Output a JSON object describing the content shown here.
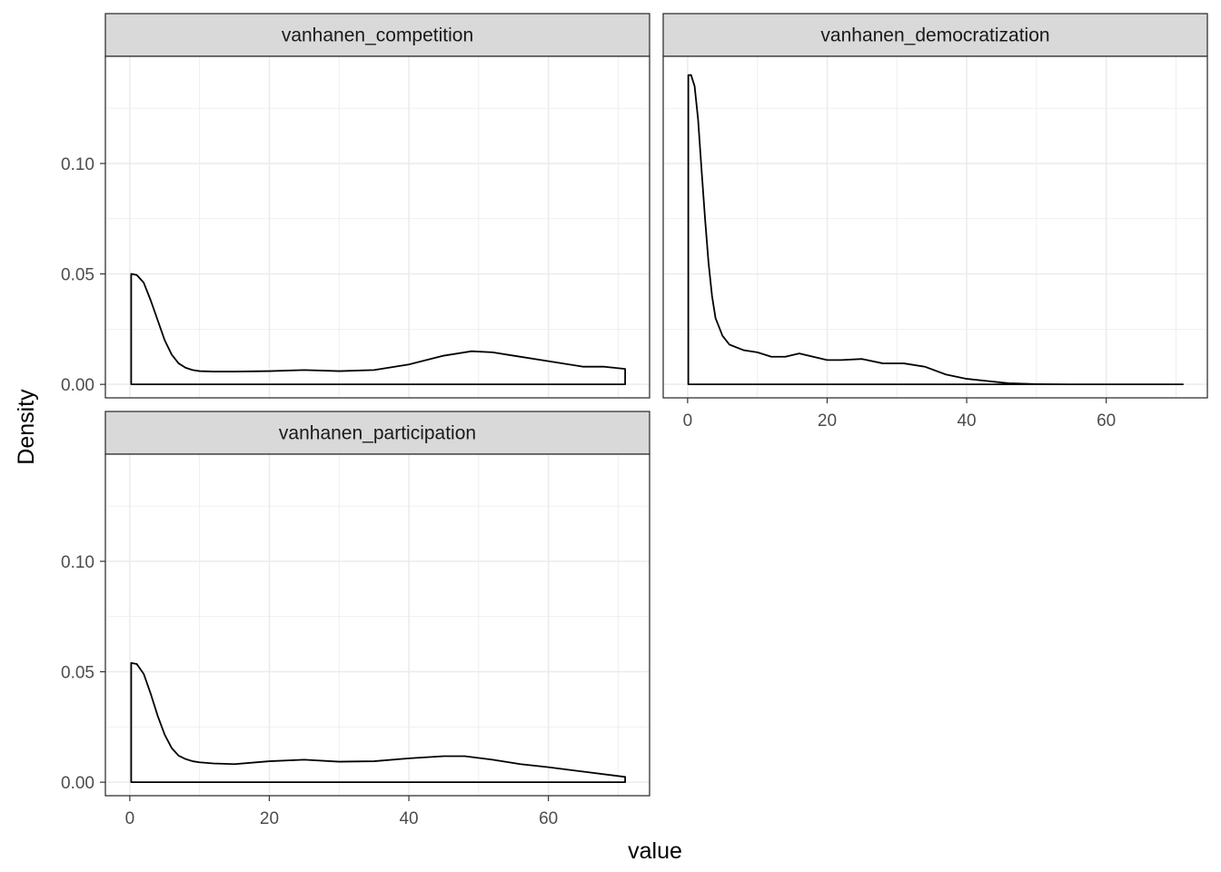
{
  "chart_data": {
    "type": "area",
    "kind": "faceted density plot",
    "xlabel": "value",
    "ylabel": "Density",
    "xlim": [
      -3.5,
      74.5
    ],
    "ylim": [
      -0.0061,
      0.1485
    ],
    "x_ticks": [
      0,
      20,
      40,
      60
    ],
    "x_tick_labels": [
      "0",
      "20",
      "40",
      "60"
    ],
    "y_ticks": [
      0.0,
      0.05,
      0.1
    ],
    "y_tick_labels": [
      "0.00",
      "0.05",
      "0.10"
    ],
    "grid": true,
    "theme": "bw",
    "line_color": "#000000",
    "strip_fill": "#d9d9d9",
    "panel_border": "#333333",
    "grid_color": "#ebebeb",
    "facets": [
      {
        "label": "vanhanen_competition",
        "series": {
          "x": [
            0.2,
            1,
            2,
            3,
            4,
            5,
            6,
            7,
            8,
            9,
            10,
            12,
            15,
            20,
            25,
            30,
            35,
            40,
            45,
            49,
            52,
            55,
            60,
            65,
            68,
            71
          ],
          "y": [
            0.05,
            0.0495,
            0.046,
            0.038,
            0.029,
            0.02,
            0.0135,
            0.0095,
            0.0075,
            0.0065,
            0.006,
            0.0058,
            0.0058,
            0.006,
            0.0065,
            0.006,
            0.0065,
            0.009,
            0.013,
            0.015,
            0.0145,
            0.013,
            0.0105,
            0.008,
            0.008,
            0.007
          ]
        }
      },
      {
        "label": "vanhanen_democratization",
        "series": {
          "x": [
            0.1,
            0.5,
            1,
            1.5,
            2,
            2.5,
            3,
            3.5,
            4,
            5,
            6,
            8,
            10,
            12,
            14,
            16,
            18,
            20,
            22,
            25,
            28,
            31,
            34,
            37,
            40,
            43,
            46,
            50,
            55,
            60,
            65,
            71
          ],
          "y": [
            0.14,
            0.14,
            0.135,
            0.12,
            0.097,
            0.075,
            0.055,
            0.04,
            0.03,
            0.022,
            0.018,
            0.0155,
            0.0145,
            0.0125,
            0.0125,
            0.014,
            0.0125,
            0.011,
            0.011,
            0.0115,
            0.0095,
            0.0095,
            0.008,
            0.0045,
            0.0025,
            0.0015,
            0.0005,
            0.0001,
            0,
            0,
            0,
            0
          ]
        }
      },
      {
        "label": "vanhanen_participation",
        "series": {
          "x": [
            0.2,
            1,
            2,
            3,
            4,
            5,
            6,
            7,
            8,
            9,
            10,
            12,
            15,
            20,
            25,
            30,
            35,
            40,
            45,
            48,
            52,
            56,
            60,
            65,
            71
          ],
          "y": [
            0.054,
            0.0535,
            0.049,
            0.04,
            0.03,
            0.0215,
            0.0155,
            0.012,
            0.0105,
            0.0095,
            0.009,
            0.0085,
            0.0082,
            0.0095,
            0.0102,
            0.0093,
            0.0095,
            0.0108,
            0.0118,
            0.0118,
            0.0102,
            0.0082,
            0.0068,
            0.0048,
            0.0024
          ]
        }
      }
    ]
  }
}
